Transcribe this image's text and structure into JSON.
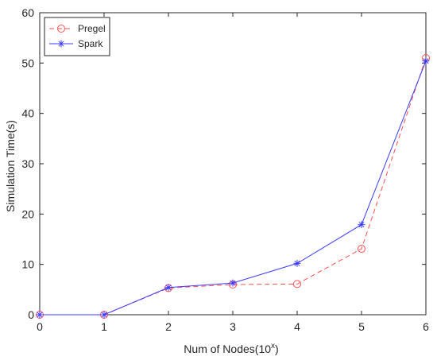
{
  "chart_data": {
    "type": "line",
    "title": "",
    "xlabel": "Num of Nodes(10",
    "xlabel_superscript": "x",
    "xlabel_suffix": ")",
    "ylabel": "Simulation Time(s)",
    "xlim": [
      0,
      6
    ],
    "ylim": [
      0,
      60
    ],
    "xticks": [
      "0",
      "1",
      "2",
      "3",
      "4",
      "5",
      "6"
    ],
    "yticks": [
      "0",
      "10",
      "20",
      "30",
      "40",
      "50",
      "60"
    ],
    "grid": false,
    "legend_position": "top-left",
    "x": [
      0,
      1,
      2,
      3,
      4,
      5,
      6
    ],
    "series": [
      {
        "name": "Pregel",
        "values": [
          0,
          0,
          5.3,
          6.0,
          6.1,
          13.1,
          51.0
        ],
        "color": "#ff4d4d",
        "line_style": "dashed",
        "marker": "circle"
      },
      {
        "name": "Spark",
        "values": [
          0,
          0,
          5.4,
          6.3,
          10.2,
          17.9,
          50.4
        ],
        "color": "#3b3bff",
        "line_style": "solid",
        "marker": "asterisk"
      }
    ]
  }
}
